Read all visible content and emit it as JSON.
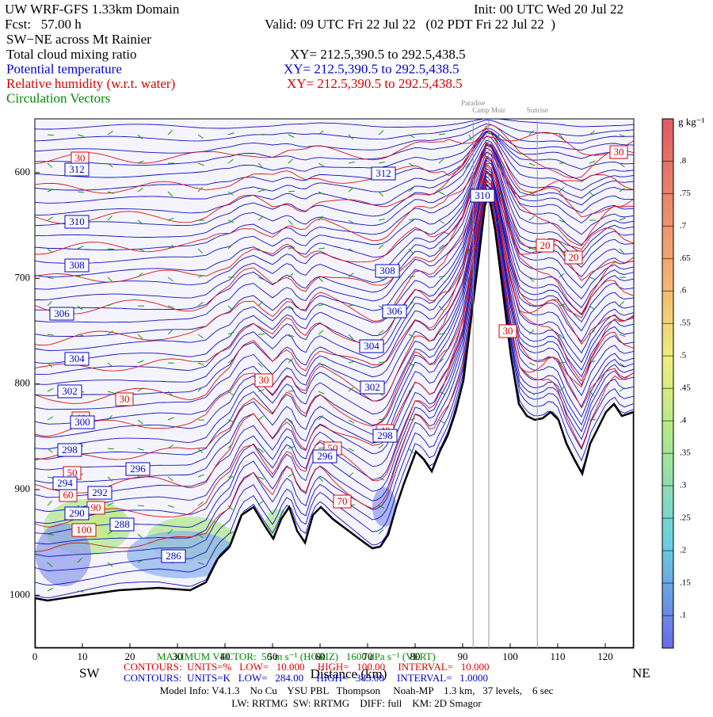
{
  "chart_data": {
    "type": "cross-section",
    "title": "UW WRF-GFS 1.33km Domain",
    "init": "Init: 00 UTC Wed 20 Jul 22",
    "fcst": "Fcst:   57.00 h",
    "valid": "Valid: 09 UTC Fri 22 Jul 22   (02 PDT Fri 22 Jul 22  )",
    "subtitle": "SW−NE across Mt Rainier",
    "fields": [
      {
        "name": "Total cloud mixing ratio",
        "color": "#000000",
        "xy": "XY= 212.5,390.5 to 292.5,438.5"
      },
      {
        "name": "Potential temperature",
        "color": "#0000cc",
        "xy": "XY= 212.5,390.5 to 292.5,438.5"
      },
      {
        "name": "Relative humidity (w.r.t. water)",
        "color": "#dd0000",
        "xy": "XY= 212.5,390.5 to 292.5,438.5"
      },
      {
        "name": "Circulation Vectors",
        "color": "#008800"
      }
    ],
    "landmarks": [
      {
        "label": "Paradise",
        "x": 92.2
      },
      {
        "label": "Camp Muir",
        "x": 95.5
      },
      {
        "label": "Sunrise",
        "x": 105.7
      }
    ],
    "xlim": [
      0,
      126
    ],
    "xticks": [
      0,
      10,
      20,
      30,
      40,
      50,
      60,
      70,
      80,
      90,
      100,
      110,
      120
    ],
    "ylim": [
      1050,
      549
    ],
    "yticks": [
      600,
      700,
      800,
      900,
      1000
    ],
    "x_left": "SW",
    "x_right": "NE",
    "x_label": "Distance (km)",
    "colorbar": {
      "label": "g kg⁻¹",
      "lim": [
        0.05,
        0.865
      ],
      "ticks": [
        {
          "value": 0.1,
          "label": ".1"
        },
        {
          "value": 0.15,
          "label": ".15"
        },
        {
          "value": 0.2,
          "label": ".2"
        },
        {
          "value": 0.25,
          "label": ".25"
        },
        {
          "value": 0.3,
          "label": ".3"
        },
        {
          "value": 0.35,
          "label": ".35"
        },
        {
          "value": 0.4,
          "label": ".4"
        },
        {
          "value": 0.45,
          "label": ".45"
        },
        {
          "value": 0.5,
          "label": ".5"
        },
        {
          "value": 0.55,
          "label": ".55"
        },
        {
          "value": 0.6,
          "label": ".6"
        },
        {
          "value": 0.65,
          "label": ".65"
        },
        {
          "value": 0.7,
          "label": ".7"
        },
        {
          "value": 0.75,
          "label": ".75"
        },
        {
          "value": 0.8,
          "label": ".8"
        }
      ]
    },
    "theta_labels": [
      "312",
      "312",
      "310",
      "308",
      "308",
      "306",
      "306",
      "304",
      "304",
      "302",
      "302",
      "300",
      "298",
      "298",
      "296",
      "296",
      "294",
      "292",
      "290",
      "288",
      "286",
      "310"
    ],
    "rh_labels": [
      "30",
      "30",
      "20",
      "20",
      "30",
      "30",
      "30",
      "40",
      "40",
      "50",
      "50",
      "60",
      "90",
      "100",
      "70"
    ],
    "footer": [
      "MAXIMUM VECTOR:  50 m s⁻¹ (HORIZ)   1600 dPa s⁻¹ (VERT)",
      "CONTOURS:  UNITS=%   LOW=   10.000     HIGH=   100.00     INTERVAL=   10.000",
      "CONTOURS:  UNITS=K   LOW=   284.00     HIGH=   383.00     INTERVAL=   1.0000",
      "Model Info: V4.1.3    No Cu    YSU PBL   Thompson     Noah-MP    1.3 km,   37 levels,    6 sec",
      "LW: RRTMG  SW: RRTMG    DIFF: full    KM: 2D Smagor"
    ]
  }
}
